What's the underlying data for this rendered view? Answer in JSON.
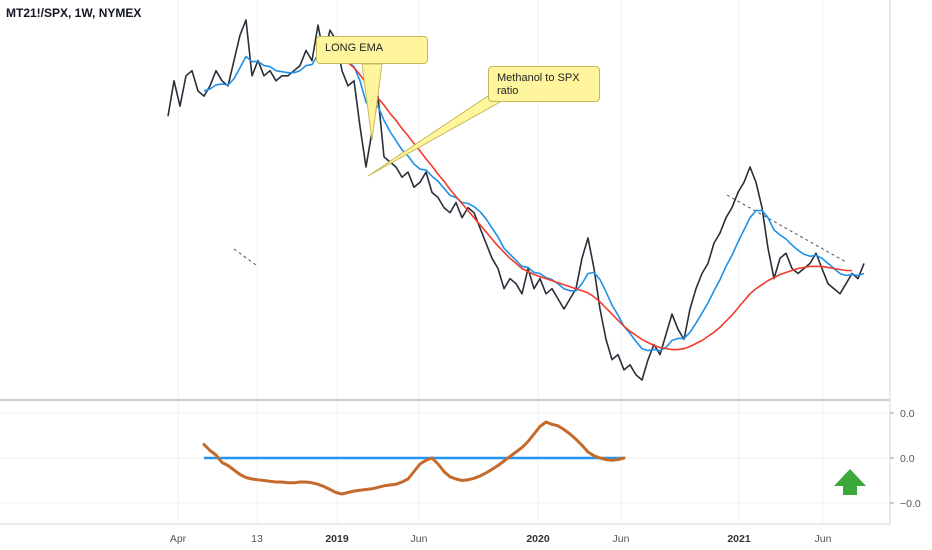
{
  "symbol_title": "MT21!/SPX, 1W, NYMEX",
  "callouts": {
    "long_ema": "LONG EMA",
    "ratio": "Methanol to SPX ratio"
  },
  "colors": {
    "price": "#2a2e39",
    "fast_ema": "#1e90e8",
    "long_ema": "#f23b2b",
    "oscillator": "#c46a2a",
    "zero_line": "#2196f3",
    "arrow": "#3ca83c"
  },
  "chart_data": [
    {
      "type": "line",
      "title": "",
      "x_tick_labels": [
        "Apr",
        "13",
        "2019",
        "Jun",
        "2020",
        "Jun",
        "2021",
        "Jun"
      ],
      "x_tick_bold": [
        false,
        false,
        true,
        false,
        true,
        false,
        true,
        false
      ],
      "series": [
        {
          "key": "price",
          "values": [
            0.3,
            0.335,
            0.31,
            0.34,
            0.345,
            0.325,
            0.32,
            0.33,
            0.345,
            0.335,
            0.33,
            0.355,
            0.38,
            0.395,
            0.34,
            0.355,
            0.34,
            0.345,
            0.335,
            0.34,
            0.34,
            0.345,
            0.35,
            0.365,
            0.355,
            0.39,
            0.36,
            0.385,
            0.375,
            0.345,
            0.33,
            0.335,
            0.29,
            0.25,
            0.285,
            0.32,
            0.26,
            0.255,
            0.25,
            0.24,
            0.245,
            0.23,
            0.235,
            0.245,
            0.225,
            0.22,
            0.21,
            0.205,
            0.215,
            0.2,
            0.21,
            0.205,
            0.19,
            0.175,
            0.16,
            0.15,
            0.13,
            0.14,
            0.135,
            0.125,
            0.15,
            0.13,
            0.14,
            0.125,
            0.13,
            0.12,
            0.11,
            0.12,
            0.13,
            0.16,
            0.18,
            0.15,
            0.11,
            0.08,
            0.06,
            0.065,
            0.05,
            0.055,
            0.045,
            0.04,
            0.06,
            0.075,
            0.065,
            0.085,
            0.105,
            0.09,
            0.08,
            0.11,
            0.13,
            0.145,
            0.155,
            0.175,
            0.185,
            0.2,
            0.21,
            0.225,
            0.235,
            0.25,
            0.235,
            0.21,
            0.17,
            0.14,
            0.16,
            0.165,
            0.15,
            0.145,
            0.15,
            0.155,
            0.165,
            0.15,
            0.135,
            0.13,
            0.125,
            0.135,
            0.145,
            0.14,
            0.155
          ]
        },
        {
          "key": "fast_ema",
          "values": [
            null,
            null,
            null,
            null,
            null,
            null,
            0.325,
            0.327,
            0.331,
            0.332,
            0.331,
            0.337,
            0.348,
            0.359,
            0.354,
            0.354,
            0.35,
            0.349,
            0.345,
            0.344,
            0.343,
            0.343,
            0.345,
            0.35,
            0.351,
            0.361,
            0.361,
            0.367,
            0.369,
            0.362,
            0.354,
            0.349,
            0.335,
            0.314,
            0.307,
            0.31,
            0.296,
            0.285,
            0.276,
            0.267,
            0.261,
            0.253,
            0.248,
            0.247,
            0.241,
            0.236,
            0.229,
            0.222,
            0.22,
            0.215,
            0.214,
            0.211,
            0.206,
            0.199,
            0.19,
            0.181,
            0.17,
            0.164,
            0.158,
            0.152,
            0.151,
            0.146,
            0.145,
            0.141,
            0.139,
            0.135,
            0.13,
            0.128,
            0.128,
            0.135,
            0.145,
            0.146,
            0.139,
            0.127,
            0.114,
            0.104,
            0.093,
            0.086,
            0.078,
            0.071,
            0.069,
            0.07,
            0.069,
            0.072,
            0.079,
            0.081,
            0.081,
            0.087,
            0.096,
            0.106,
            0.116,
            0.128,
            0.139,
            0.152,
            0.163,
            0.176,
            0.188,
            0.2,
            0.207,
            0.207,
            0.2,
            0.188,
            0.183,
            0.179,
            0.173,
            0.168,
            0.164,
            0.162,
            0.163,
            0.16,
            0.155,
            0.15,
            0.145,
            0.143,
            0.144,
            0.143,
            0.145
          ]
        },
        {
          "key": "long_ema",
          "values": [
            null,
            null,
            null,
            null,
            null,
            null,
            null,
            null,
            null,
            null,
            null,
            null,
            null,
            null,
            null,
            null,
            null,
            null,
            null,
            null,
            null,
            null,
            null,
            null,
            null,
            null,
            null,
            0.365,
            0.363,
            0.358,
            0.353,
            0.348,
            0.341,
            0.333,
            0.326,
            0.318,
            0.311,
            0.303,
            0.296,
            0.288,
            0.281,
            0.273,
            0.266,
            0.258,
            0.251,
            0.243,
            0.236,
            0.228,
            0.221,
            0.214,
            0.207,
            0.2,
            0.193,
            0.186,
            0.179,
            0.172,
            0.166,
            0.16,
            0.155,
            0.15,
            0.147,
            0.144,
            0.142,
            0.14,
            0.138,
            0.136,
            0.134,
            0.132,
            0.13,
            0.128,
            0.126,
            0.122,
            0.117,
            0.111,
            0.105,
            0.099,
            0.093,
            0.088,
            0.084,
            0.08,
            0.077,
            0.074,
            0.072,
            0.071,
            0.07,
            0.07,
            0.071,
            0.073,
            0.076,
            0.079,
            0.083,
            0.087,
            0.092,
            0.098,
            0.104,
            0.111,
            0.118,
            0.125,
            0.13,
            0.134,
            0.138,
            0.141,
            0.144,
            0.146,
            0.148,
            0.15,
            0.151,
            0.152,
            0.152,
            0.152,
            0.151,
            0.15,
            0.149,
            0.148,
            0.148
          ]
        }
      ]
    },
    {
      "type": "line",
      "title": "",
      "y_tick_labels": [
        "0.0",
        "0.0",
        "−0.0"
      ],
      "ylim": [
        -0.06,
        0.06
      ],
      "series": [
        {
          "key": "oscillator",
          "values": [
            null,
            null,
            null,
            null,
            null,
            null,
            0.018,
            0.01,
            0.004,
            -0.006,
            -0.01,
            -0.016,
            -0.022,
            -0.026,
            -0.028,
            -0.029,
            -0.03,
            -0.031,
            -0.032,
            -0.032,
            -0.033,
            -0.033,
            -0.032,
            -0.032,
            -0.033,
            -0.035,
            -0.038,
            -0.042,
            -0.046,
            -0.048,
            -0.046,
            -0.044,
            -0.043,
            -0.042,
            -0.041,
            -0.039,
            -0.037,
            -0.036,
            -0.035,
            -0.032,
            -0.028,
            -0.018,
            -0.008,
            -0.003,
            0.0,
            -0.008,
            -0.018,
            -0.025,
            -0.028,
            -0.03,
            -0.029,
            -0.027,
            -0.024,
            -0.02,
            -0.015,
            -0.01,
            -0.004,
            0.002,
            0.008,
            0.014,
            0.022,
            0.032,
            0.042,
            0.048,
            0.045,
            0.043,
            0.038,
            0.032,
            0.025,
            0.017,
            0.008,
            0.003,
            0.0,
            -0.002,
            -0.003,
            -0.002,
            0.0
          ]
        },
        {
          "key": "zero_line",
          "values": [
            0.0,
            0.0
          ]
        }
      ]
    }
  ]
}
